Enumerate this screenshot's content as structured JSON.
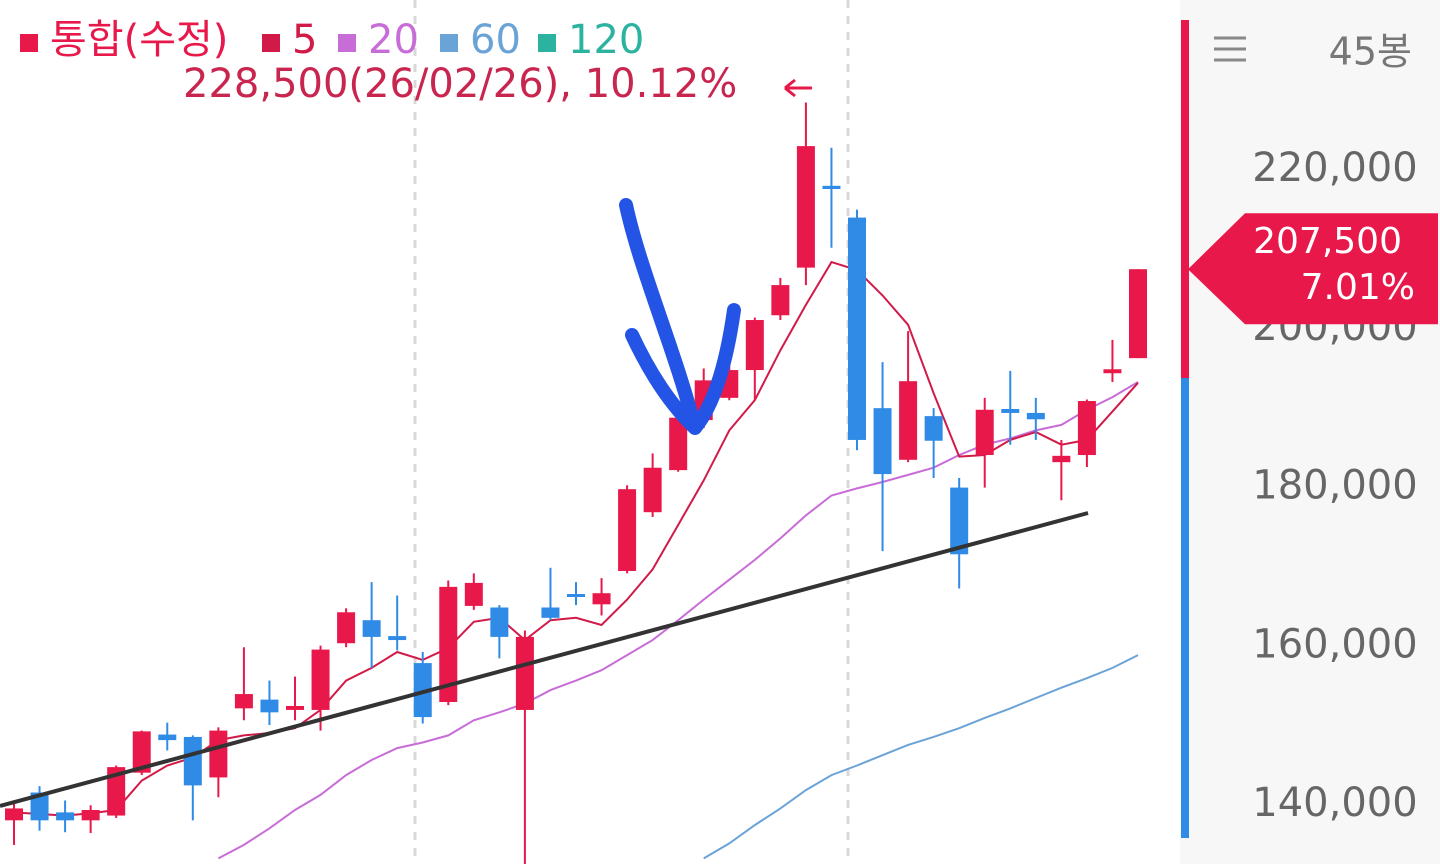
{
  "chart_data": {
    "type": "candlestick",
    "info": "228,500(26/02/26), 10.12%",
    "bar_count": "45봉",
    "price_tag": [
      "207,500",
      "7.01%"
    ],
    "up_color": "#e8194a",
    "down_color": "#2f8be6",
    "ylim": [
      132600,
      241400
    ],
    "yticks": [
      {
        "value": 140000,
        "label": "140,000"
      },
      {
        "value": 160000,
        "label": "160,000"
      },
      {
        "value": 180000,
        "label": "180,000"
      },
      {
        "value": 200000,
        "label": "200,000"
      },
      {
        "value": 220000,
        "label": "220,000"
      }
    ],
    "grid": false,
    "candles": {
      "open": [
        138100,
        141600,
        139100,
        138100,
        138700,
        144100,
        148900,
        148600,
        143500,
        152200,
        153300,
        152000,
        152000,
        160400,
        163300,
        161300,
        157900,
        153000,
        165100,
        164900,
        152000,
        164900,
        166600,
        165300,
        169500,
        176900,
        182200,
        188500,
        191300,
        194800,
        201700,
        207700,
        218000,
        214000,
        190000,
        183500,
        189000,
        180000,
        184100,
        189900,
        189400,
        183200,
        184100,
        194400,
        196300
      ],
      "high": [
        140600,
        142400,
        140600,
        140000,
        145000,
        149400,
        150400,
        148800,
        149800,
        159900,
        155700,
        156200,
        160100,
        164800,
        168100,
        166400,
        159300,
        168300,
        169200,
        165200,
        162000,
        169900,
        168100,
        168600,
        180300,
        184300,
        191000,
        195000,
        195400,
        201400,
        206400,
        228500,
        222800,
        215000,
        195800,
        199700,
        190000,
        181200,
        191300,
        194700,
        191300,
        186000,
        191100,
        198600,
        207500
      ],
      "low": [
        135000,
        136800,
        136600,
        136500,
        138400,
        143800,
        146900,
        138100,
        141000,
        150700,
        150100,
        150700,
        149400,
        159900,
        157300,
        159500,
        150300,
        152600,
        164600,
        158500,
        132600,
        163300,
        165200,
        163900,
        169200,
        176300,
        182000,
        187500,
        191000,
        191000,
        201100,
        205500,
        210200,
        184700,
        172000,
        183200,
        181200,
        167300,
        180000,
        185400,
        186000,
        178400,
        182600,
        193300,
        196300
      ],
      "close": [
        139600,
        138100,
        138100,
        139400,
        144800,
        149300,
        148200,
        142500,
        149400,
        154000,
        151700,
        152500,
        159600,
        164300,
        161200,
        160800,
        151100,
        167500,
        168000,
        161200,
        161200,
        163600,
        166300,
        166700,
        179800,
        182500,
        188800,
        193500,
        194800,
        201100,
        205500,
        223000,
        217600,
        186000,
        181700,
        193400,
        185900,
        171600,
        189800,
        189400,
        188600,
        184000,
        190900,
        194900,
        207500
      ]
    },
    "series": [
      {
        "name": "통합(수정)",
        "color": "#e8194a"
      },
      {
        "name": "5",
        "color": "#d21a48",
        "values": [
          139100,
          138900,
          138700,
          139000,
          139400,
          143100,
          145000,
          146000,
          148200,
          148800,
          149100,
          149700,
          152000,
          155700,
          157300,
          159300,
          158300,
          159800,
          163100,
          163600,
          160800,
          163300,
          163600,
          162700,
          165900,
          169700,
          175300,
          180900,
          187200,
          191000,
          197300,
          203000,
          208400,
          207400,
          204200,
          200500,
          191900,
          183900,
          184100,
          186000,
          187000,
          185400,
          186000,
          189600,
          193200
        ]
      },
      {
        "name": "20",
        "color": "#c86dd7",
        "values": [
          null,
          null,
          null,
          null,
          null,
          null,
          null,
          null,
          133300,
          135000,
          137100,
          139400,
          141300,
          143800,
          145700,
          147200,
          147900,
          148800,
          150700,
          151700,
          152800,
          154500,
          155700,
          157000,
          158900,
          160800,
          163300,
          165900,
          168400,
          170900,
          173600,
          176500,
          179000,
          179900,
          180700,
          181600,
          182500,
          184100,
          185400,
          186200,
          187200,
          187900,
          189800,
          191400,
          193300
        ]
      },
      {
        "name": "60",
        "color": "#6aa3d6",
        "values": [
          null,
          null,
          null,
          null,
          null,
          null,
          null,
          null,
          null,
          null,
          null,
          null,
          null,
          null,
          null,
          null,
          null,
          null,
          null,
          null,
          null,
          null,
          null,
          null,
          null,
          null,
          null,
          133300,
          135200,
          137500,
          139600,
          141900,
          143800,
          145000,
          146300,
          147600,
          148600,
          149700,
          151000,
          152200,
          153500,
          154800,
          156000,
          157300,
          158900
        ]
      },
      {
        "name": "120",
        "color": "#2bb3a0"
      }
    ]
  }
}
